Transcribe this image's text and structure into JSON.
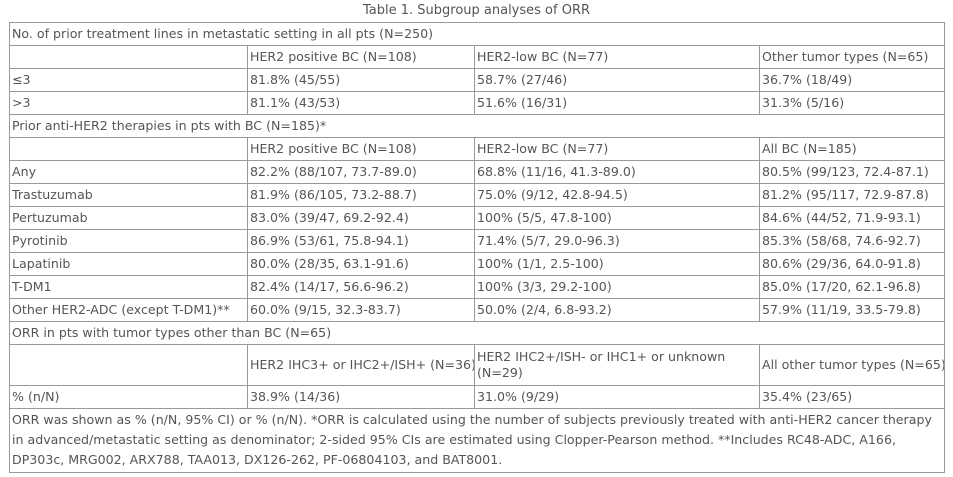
{
  "caption": "Table 1. Subgroup analyses of ORR",
  "section1": {
    "title": "No. of prior treatment lines in metastatic setting in all pts (N=250)",
    "headers": [
      "",
      "HER2 positive BC (N=108)",
      "HER2-low BC (N=77)",
      "Other tumor types (N=65)"
    ],
    "rows": [
      [
        "≤3",
        "81.8% (45/55)",
        "58.7% (27/46)",
        "36.7% (18/49)"
      ],
      [
        ">3",
        "81.1% (43/53)",
        "51.6% (16/31)",
        "31.3% (5/16)"
      ]
    ]
  },
  "section2": {
    "title": "Prior anti-HER2 therapies in pts with BC (N=185)*",
    "headers": [
      "",
      "HER2 positive BC (N=108)",
      "HER2-low BC (N=77)",
      "All BC (N=185)"
    ],
    "rows": [
      [
        "Any",
        "82.2% (88/107, 73.7-89.0)",
        "68.8% (11/16, 41.3-89.0)",
        "80.5% (99/123, 72.4-87.1)"
      ],
      [
        "Trastuzumab",
        "81.9% (86/105, 73.2-88.7)",
        "75.0% (9/12, 42.8-94.5)",
        "81.2% (95/117, 72.9-87.8)"
      ],
      [
        "Pertuzumab",
        "83.0% (39/47, 69.2-92.4)",
        "100% (5/5, 47.8-100)",
        "84.6% (44/52, 71.9-93.1)"
      ],
      [
        "Pyrotinib",
        "86.9% (53/61, 75.8-94.1)",
        "71.4% (5/7, 29.0-96.3)",
        "85.3% (58/68, 74.6-92.7)"
      ],
      [
        "Lapatinib",
        "80.0% (28/35, 63.1-91.6)",
        "100% (1/1, 2.5-100)",
        "80.6% (29/36, 64.0-91.8)"
      ],
      [
        "T-DM1",
        "82.4% (14/17, 56.6-96.2)",
        "100% (3/3, 29.2-100)",
        "85.0% (17/20, 62.1-96.8)"
      ],
      [
        "Other HER2-ADC (except T-DM1)**",
        "60.0% (9/15, 32.3-83.7)",
        "50.0% (2/4, 6.8-93.2)",
        "57.9% (11/19, 33.5-79.8)"
      ]
    ]
  },
  "section3": {
    "title": "ORR in pts with tumor types other than BC (N=65)",
    "headers": [
      "",
      "HER2 IHC3+ or IHC2+/ISH+ (N=36)",
      "HER2 IHC2+/ISH- or IHC1+ or unknown (N=29)",
      "All other tumor types (N=65)"
    ],
    "rows": [
      [
        "% (n/N)",
        "38.9% (14/36)",
        "31.0% (9/29)",
        "35.4% (23/65)"
      ]
    ]
  },
  "footnote": "ORR was shown as % (n/N, 95% CI) or % (n/N). *ORR is calculated using the number of subjects previously treated with anti-HER2 cancer therapy in advanced/metastatic setting as denominator; 2-sided 95% CIs are estimated using Clopper-Pearson method. **Includes RC48-ADC, A166, DP303c, MRG002, ARX788, TAA013, DX126-262, PF-06804103, and BAT8001."
}
